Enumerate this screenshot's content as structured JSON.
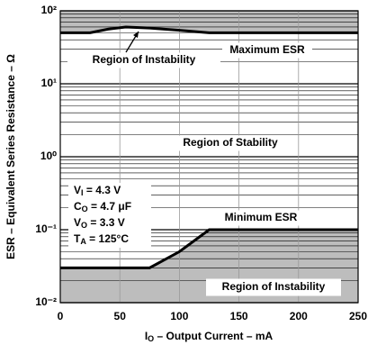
{
  "chart_data": {
    "type": "line",
    "y_label": "ESR – Equivalent Series Resistance – Ω",
    "x_label": {
      "main": "I",
      "sub": "O",
      "rest": " – Output Current – mA"
    },
    "log_y": true,
    "grid": true,
    "xlim": [
      0,
      250
    ],
    "xticks": [
      0,
      50,
      100,
      150,
      200,
      250
    ],
    "ylim": [
      0.01,
      100
    ],
    "yticks": [
      {
        "value": 100,
        "label": "10²"
      },
      {
        "value": 10,
        "label": "10¹"
      },
      {
        "value": 1,
        "label": "10⁰"
      },
      {
        "value": 0.1,
        "label": "10⁻¹"
      },
      {
        "value": 0.01,
        "label": "10⁻²"
      }
    ],
    "series": [
      {
        "name": "Maximum ESR",
        "color": "#000000",
        "x": [
          0,
          25,
          40,
          55,
          75,
          100,
          125,
          250
        ],
        "values": [
          50,
          50,
          56,
          60,
          58,
          54,
          50,
          50
        ]
      },
      {
        "name": "Minimum ESR",
        "color": "#000000",
        "x": [
          0,
          75,
          100,
          125,
          250
        ],
        "values": [
          0.03,
          0.03,
          0.05,
          0.1,
          0.1
        ]
      }
    ],
    "region_color": "#bdbdbd",
    "regions": {
      "upper": "Region of Instability",
      "middle": "Region of Stability",
      "lower": "Region of Instability"
    },
    "conditions": [
      {
        "main": "V",
        "sub": "I",
        "rest": " = 4.3 V"
      },
      {
        "main": "C",
        "sub": "O",
        "rest": " = 4.7 μF"
      },
      {
        "main": "V",
        "sub": "O",
        "rest": " = 3.3 V"
      },
      {
        "main": "T",
        "sub": "A",
        "rest": " = 125°C"
      }
    ]
  }
}
